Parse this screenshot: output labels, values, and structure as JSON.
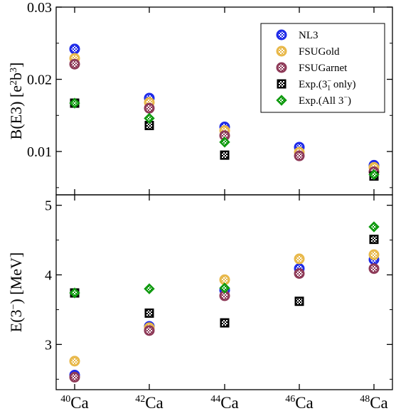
{
  "colors": {
    "NL3": "#1f2be8",
    "FSUGold": "#e8b84a",
    "FSUGarnet": "#8e3a58",
    "Exp3_1": "#000000",
    "ExpAll": "#109a10"
  },
  "chart_data": [
    {
      "type": "scatter",
      "panel": "top",
      "ylabel": "B(E3) [e²b³]",
      "ylabel_parts": {
        "main": "B(E3) [e",
        "sup1": "2",
        "mid": "b",
        "sup2": "3",
        "end": "]"
      },
      "ylim": [
        0.004,
        0.03
      ],
      "yticks": [
        0.01,
        0.02,
        0.03
      ],
      "ytick_labels": [
        "0.01",
        "0.02",
        "0.03"
      ],
      "categories": [
        "40Ca",
        "42Ca",
        "44Ca",
        "46Ca",
        "48Ca"
      ],
      "series": [
        {
          "name": "NL3",
          "marker": "circle",
          "values": [
            0.0242,
            0.0174,
            0.0134,
            0.0106,
            0.0081
          ]
        },
        {
          "name": "FSUGold",
          "marker": "circle",
          "values": [
            0.0229,
            0.0168,
            0.0129,
            0.0099,
            0.0078
          ]
        },
        {
          "name": "FSUGarnet",
          "marker": "circle",
          "values": [
            0.0221,
            0.016,
            0.0122,
            0.0094,
            0.0072
          ]
        },
        {
          "name": "Exp.(3₁⁻ only)",
          "marker": "square",
          "values": [
            0.0167,
            0.0136,
            0.0095,
            null,
            0.0066
          ]
        },
        {
          "name": "Exp.(All 3⁻)",
          "marker": "diamond",
          "values": [
            0.0167,
            0.0146,
            0.0113,
            null,
            0.0068
          ]
        }
      ],
      "legend": {
        "position": "top-right",
        "entries": [
          {
            "key": "NL3",
            "text": "NL3"
          },
          {
            "key": "FSUGold",
            "text": "FSUGold"
          },
          {
            "key": "FSUGarnet",
            "text": "FSUGarnet"
          },
          {
            "key": "Exp3_1",
            "text_main": "Exp.(3",
            "text_sup": "−",
            "text_sub": "1",
            "text_end": " only)"
          },
          {
            "key": "ExpAll",
            "text_main": "Exp.(All 3",
            "text_sup": "−",
            "text_end": ")"
          }
        ]
      }
    },
    {
      "type": "scatter",
      "panel": "bottom",
      "ylabel": "E(3⁻) [MeV]",
      "ylabel_parts": {
        "main": "E(3",
        "sup": "−",
        "end": ") [MeV]"
      },
      "ylim": [
        2.35,
        5.15
      ],
      "yticks": [
        3,
        4,
        5
      ],
      "ytick_labels": [
        "3",
        "4",
        "5"
      ],
      "categories": [
        "40Ca",
        "42Ca",
        "44Ca",
        "46Ca",
        "48Ca"
      ],
      "category_labels": [
        {
          "sup": "40",
          "base": "Ca"
        },
        {
          "sup": "42",
          "base": "Ca"
        },
        {
          "sup": "44",
          "base": "Ca"
        },
        {
          "sup": "46",
          "base": "Ca"
        },
        {
          "sup": "48",
          "base": "Ca"
        }
      ],
      "series": [
        {
          "name": "NL3",
          "marker": "circle",
          "values": [
            2.56,
            3.26,
            3.78,
            4.09,
            4.22
          ]
        },
        {
          "name": "FSUGold",
          "marker": "circle",
          "values": [
            2.76,
            3.24,
            3.93,
            4.23,
            4.29
          ]
        },
        {
          "name": "FSUGarnet",
          "marker": "circle",
          "values": [
            2.53,
            3.2,
            3.7,
            4.02,
            4.09
          ]
        },
        {
          "name": "Exp.(3₁⁻ only)",
          "marker": "square",
          "values": [
            3.74,
            3.45,
            3.31,
            3.62,
            4.51
          ]
        },
        {
          "name": "Exp.(All 3⁻)",
          "marker": "diamond",
          "values": [
            3.74,
            3.8,
            3.81,
            null,
            4.69
          ]
        }
      ]
    }
  ]
}
